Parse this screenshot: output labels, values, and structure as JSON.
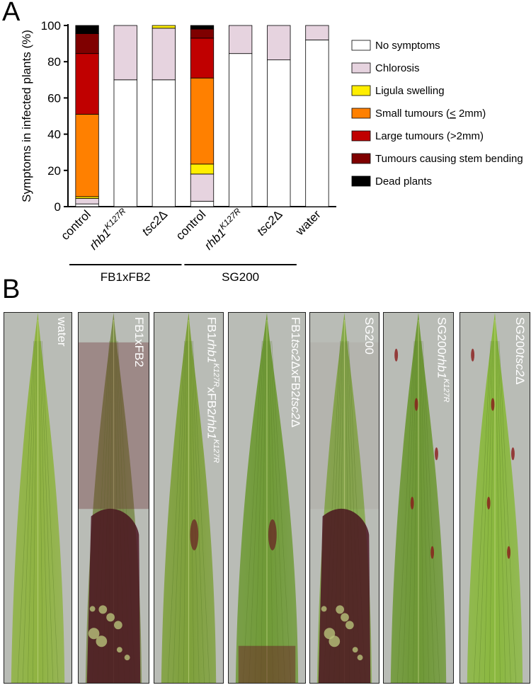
{
  "panel_a_letter": "A",
  "panel_b_letter": "B",
  "chart_data": {
    "type": "bar",
    "stacked": true,
    "ylabel": "Symptoms in infected plants (%)",
    "ylim": [
      0,
      100
    ],
    "yticks": [
      "0",
      "20",
      "40",
      "60",
      "80",
      "100"
    ],
    "grid": false,
    "legend_position": "right",
    "categories": [
      {
        "parts": [
          {
            "text": "control",
            "italic": false
          }
        ]
      },
      {
        "parts": [
          {
            "text": "rhb1",
            "italic": true
          },
          {
            "text": "K127R",
            "italic": true,
            "sup": true
          }
        ]
      },
      {
        "parts": [
          {
            "text": "tsc2",
            "italic": true
          },
          {
            "text": "Δ",
            "italic": false
          }
        ]
      },
      {
        "parts": [
          {
            "text": "control",
            "italic": false
          }
        ]
      },
      {
        "parts": [
          {
            "text": "rhb1",
            "italic": true
          },
          {
            "text": "K127R",
            "italic": true,
            "sup": true
          }
        ]
      },
      {
        "parts": [
          {
            "text": "tsc2",
            "italic": true
          },
          {
            "text": "Δ",
            "italic": false
          }
        ]
      },
      {
        "parts": [
          {
            "text": "water",
            "italic": false
          }
        ]
      }
    ],
    "groups": [
      {
        "label": "FB1xFB2",
        "first": 0,
        "last": 2
      },
      {
        "label": "SG200",
        "first": 3,
        "last": 5
      }
    ],
    "series": [
      {
        "name": "No symptoms",
        "color": "#ffffff",
        "values": [
          1.5,
          70,
          70,
          3,
          84.5,
          81,
          92
        ]
      },
      {
        "name": "Chlorosis",
        "color": "#e6d3df",
        "values": [
          3,
          30,
          28.5,
          15,
          15.5,
          19,
          8
        ]
      },
      {
        "name": "Ligula swelling",
        "color": "#ffee00",
        "values": [
          1,
          0,
          1.5,
          5.5,
          0,
          0,
          0
        ]
      },
      {
        "name": "Small tumours (< 2mm)",
        "legend_parts": [
          {
            "text": "Small tumours ("
          },
          {
            "text": "<",
            "underline": true
          },
          {
            "text": " 2mm)"
          }
        ],
        "color": "#ff8000",
        "values": [
          45.5,
          0,
          0,
          47.5,
          0,
          0,
          0
        ]
      },
      {
        "name": "Large tumours (>2mm)",
        "color": "#c00000",
        "values": [
          33.5,
          0,
          0,
          22,
          0,
          0,
          0
        ]
      },
      {
        "name": "Tumours causing stem bending",
        "color": "#7f0000",
        "values": [
          11,
          0,
          0,
          5,
          0,
          0,
          0
        ]
      },
      {
        "name": "Dead plants",
        "color": "#000000",
        "values": [
          4.5,
          0,
          0,
          2,
          0,
          0,
          0
        ]
      }
    ]
  },
  "leaves": [
    {
      "label_parts": [
        {
          "text": "water"
        }
      ],
      "base": "#8fb341",
      "stain": "none"
    },
    {
      "label_parts": [
        {
          "text": "FB1xFB2"
        }
      ],
      "base": "#7a8a4a",
      "stain": "heavy-base"
    },
    {
      "label_parts": [
        {
          "text": "FB1"
        },
        {
          "text": "rhb1",
          "italic": true
        },
        {
          "text": "K127R",
          "italic": true,
          "sup": true
        },
        {
          "text": "xFB2"
        },
        {
          "text": "rhb1",
          "italic": true
        },
        {
          "text": "K127R",
          "italic": true,
          "sup": true
        }
      ],
      "base": "#7ea03a",
      "stain": "light"
    },
    {
      "label_parts": [
        {
          "text": "FB1"
        },
        {
          "text": "tsc2",
          "italic": true
        },
        {
          "text": "ΔxFB2"
        },
        {
          "text": "tsc2",
          "italic": true
        },
        {
          "text": "Δ"
        }
      ],
      "base": "#6f9a36",
      "stain": "light-base"
    },
    {
      "label_parts": [
        {
          "text": "SG200"
        }
      ],
      "base": "#84a84a",
      "stain": "heavy-base"
    },
    {
      "label_parts": [
        {
          "text": "SG200"
        },
        {
          "text": "rhb1",
          "italic": true
        },
        {
          "text": "K127R",
          "italic": true,
          "sup": true
        }
      ],
      "base": "#6e9835",
      "stain": "spots"
    },
    {
      "label_parts": [
        {
          "text": "SG200"
        },
        {
          "text": "tsc2",
          "italic": true
        },
        {
          "text": "Δ"
        }
      ],
      "base": "#8ab83e",
      "stain": "spots"
    }
  ]
}
